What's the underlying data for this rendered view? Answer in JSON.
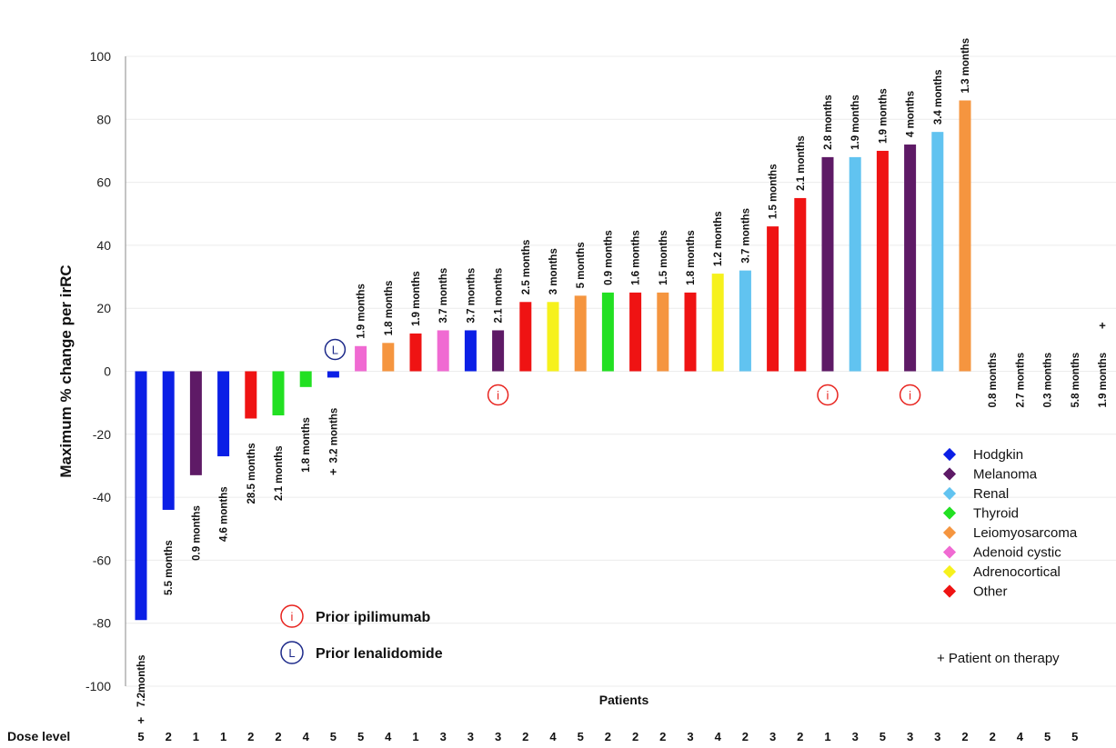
{
  "chart_data": {
    "type": "bar",
    "ylabel": "Maximum % change per irRC",
    "xlabel": "Patients",
    "ylim": [
      -100,
      100
    ],
    "yticks": [
      100,
      80,
      60,
      40,
      20,
      0,
      -20,
      -40,
      -60,
      -80,
      -100
    ],
    "grid": true,
    "dose_level_label": "Dose level",
    "colors": {
      "Hodgkin": "#0b1fe6",
      "Melanoma": "#5e1a66",
      "Renal": "#61c3f0",
      "Thyroid": "#22e022",
      "Leiomyosarcoma": "#f5953f",
      "Adenoid cystic": "#f06ad2",
      "Adrenocortical": "#f6f11c",
      "Other": "#ef1313"
    },
    "legend": {
      "position": "right",
      "items": [
        "Hodgkin",
        "Melanoma",
        "Renal",
        "Thyroid",
        "Leiomyosarcoma",
        "Adenoid cystic",
        "Adrenocortical",
        "Other"
      ],
      "on_therapy_note": "+ Patient on therapy"
    },
    "key": {
      "ipilimumab_symbol": "i",
      "ipilimumab_label": "Prior ipilimumab",
      "lenalidomide_symbol": "L",
      "lenalidomide_label": "Prior lenalidomide"
    },
    "bars": [
      {
        "value": -79,
        "type": "Hodgkin",
        "duration": "7.2months",
        "dose": "5",
        "on_therapy": true
      },
      {
        "value": -44,
        "type": "Hodgkin",
        "duration": "5.5 months",
        "dose": "2"
      },
      {
        "value": -33,
        "type": "Melanoma",
        "duration": "0.9 months",
        "dose": "1"
      },
      {
        "value": -27,
        "type": "Hodgkin",
        "duration": "4.6 months",
        "dose": "1"
      },
      {
        "value": -15,
        "type": "Other",
        "duration": "28.5 months",
        "dose": "2"
      },
      {
        "value": -14,
        "type": "Thyroid",
        "duration": "2.1 months",
        "dose": "2"
      },
      {
        "value": -5,
        "type": "Thyroid",
        "duration": "1.8 months",
        "dose": "4"
      },
      {
        "value": -2,
        "type": "Hodgkin",
        "duration": "3.2 months",
        "dose": "5",
        "on_therapy": true,
        "prior": "lenalidomide"
      },
      {
        "value": 8,
        "type": "Adenoid cystic",
        "duration": "1.9 months",
        "dose": "5"
      },
      {
        "value": 9,
        "type": "Leiomyosarcoma",
        "duration": "1.8 months",
        "dose": "4"
      },
      {
        "value": 12,
        "type": "Other",
        "duration": "1.9 months",
        "dose": "1"
      },
      {
        "value": 13,
        "type": "Adenoid cystic",
        "duration": "3.7 months",
        "dose": "3"
      },
      {
        "value": 13,
        "type": "Hodgkin",
        "duration": "3.7 months",
        "dose": "3"
      },
      {
        "value": 13,
        "type": "Melanoma",
        "duration": "2.1 months",
        "dose": "3",
        "prior": "ipilimumab"
      },
      {
        "value": 22,
        "type": "Other",
        "duration": "2.5 months",
        "dose": "2"
      },
      {
        "value": 22,
        "type": "Adrenocortical",
        "duration": "3 months",
        "dose": "4"
      },
      {
        "value": 24,
        "type": "Leiomyosarcoma",
        "duration": "5 months",
        "dose": "5"
      },
      {
        "value": 25,
        "type": "Thyroid",
        "duration": "0.9 months",
        "dose": "2"
      },
      {
        "value": 25,
        "type": "Other",
        "duration": "1.6 months",
        "dose": "2"
      },
      {
        "value": 25,
        "type": "Leiomyosarcoma",
        "duration": "1.5 months",
        "dose": "2"
      },
      {
        "value": 25,
        "type": "Other",
        "duration": "1.8 months",
        "dose": "3"
      },
      {
        "value": 31,
        "type": "Adrenocortical",
        "duration": "1.2 months",
        "dose": "4"
      },
      {
        "value": 32,
        "type": "Renal",
        "duration": "3.7 months",
        "dose": "2"
      },
      {
        "value": 46,
        "type": "Other",
        "duration": "1.5 months",
        "dose": "3"
      },
      {
        "value": 55,
        "type": "Other",
        "duration": "2.1 months",
        "dose": "2"
      },
      {
        "value": 68,
        "type": "Melanoma",
        "duration": "2.8 months",
        "dose": "1",
        "prior": "ipilimumab"
      },
      {
        "value": 68,
        "type": "Renal",
        "duration": "1.9 months",
        "dose": "3"
      },
      {
        "value": 70,
        "type": "Other",
        "duration": "1.9 months",
        "dose": "5"
      },
      {
        "value": 72,
        "type": "Melanoma",
        "duration": "4 months",
        "dose": "3",
        "prior": "ipilimumab"
      },
      {
        "value": 76,
        "type": "Renal",
        "duration": "3.4 months",
        "dose": "3"
      },
      {
        "value": 86,
        "type": "Leiomyosarcoma",
        "duration": "1.3 months",
        "dose": "2"
      },
      {
        "value": 0,
        "type": null,
        "duration": "0.8 months",
        "dose": "2"
      },
      {
        "value": 0,
        "type": null,
        "duration": "2.7 months",
        "dose": "4"
      },
      {
        "value": 0,
        "type": null,
        "duration": "0.3 months",
        "dose": "5"
      },
      {
        "value": 0,
        "type": null,
        "duration": "5.8 months",
        "dose": "5"
      },
      {
        "value": 0,
        "type": null,
        "duration": "1.9 months",
        "dose": "",
        "on_therapy": true
      }
    ]
  }
}
